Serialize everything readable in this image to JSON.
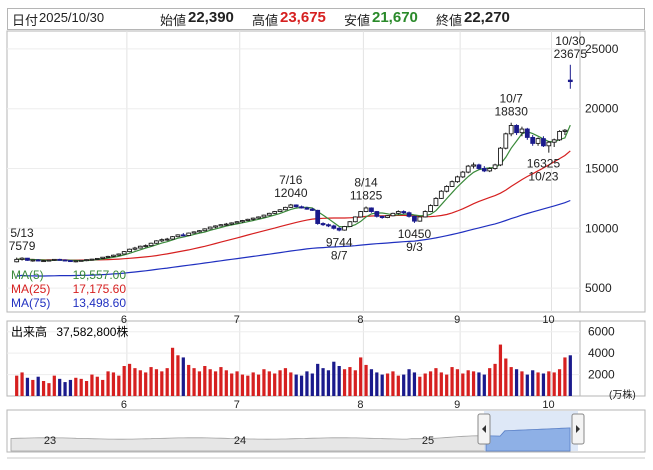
{
  "header": {
    "date_label": "日付",
    "date_value": "2025/10/30",
    "open_label": "始値",
    "open_value": "22,390",
    "high_label": "高値",
    "high_value": "23,675",
    "low_label": "安値",
    "low_value": "21,670",
    "close_label": "終値",
    "close_value": "22,270"
  },
  "colors": {
    "up": "#1a1a1a",
    "down": "#1a1a8c",
    "ma5": "#3a8a3a",
    "ma25": "#d62020",
    "ma75": "#2030c0",
    "high_text": "#d62020",
    "low_text": "#2a8a2a",
    "volume_up": "#d62020",
    "volume_down": "#1a1a8c"
  },
  "legend": {
    "ma5_label": "MA(5)",
    "ma5_value": "19,557.00",
    "ma25_label": "MA(25)",
    "ma25_value": "17,175.60",
    "ma75_label": "MA(75)",
    "ma75_value": "13,498.60"
  },
  "volume_panel": {
    "label": "出来高",
    "value": "37,582,800株",
    "unit": "(万株)"
  },
  "navigator": {
    "labels": [
      "23",
      "24",
      "25"
    ]
  },
  "chart_data": {
    "type": "candlestick",
    "y_ticks": [
      "25000",
      "20000",
      "15000",
      "10000",
      "5000"
    ],
    "ylim": [
      3000,
      26500
    ],
    "x_month_labels": [
      "6",
      "7",
      "8",
      "9",
      "10"
    ],
    "annotations": [
      {
        "date": "5/13",
        "value": 7579
      },
      {
        "date": "7/16",
        "value": 12040
      },
      {
        "date": "8/14",
        "value": 11825
      },
      {
        "date": "8/7",
        "value": 9744
      },
      {
        "date": "9/3",
        "value": 10450
      },
      {
        "date": "10/7",
        "value": 18830
      },
      {
        "date": "10/23",
        "value": 16325
      },
      {
        "date": "10/30",
        "value": 23675
      }
    ],
    "volume_y_ticks": [
      "6000",
      "4000",
      "2000"
    ],
    "volume_ylim": [
      0,
      7000
    ],
    "candles": [
      [
        7200,
        7550,
        7150,
        7400
      ],
      [
        7400,
        7579,
        7300,
        7500
      ],
      [
        7500,
        7520,
        7280,
        7320
      ],
      [
        7320,
        7400,
        7200,
        7350
      ],
      [
        7350,
        7420,
        7250,
        7280
      ],
      [
        7280,
        7350,
        7180,
        7300
      ],
      [
        7300,
        7380,
        7250,
        7340
      ],
      [
        7340,
        7420,
        7280,
        7400
      ],
      [
        7400,
        7450,
        7300,
        7350
      ],
      [
        7350,
        7400,
        7250,
        7300
      ],
      [
        7300,
        7350,
        7200,
        7250
      ],
      [
        7250,
        7300,
        7150,
        7280
      ],
      [
        7280,
        7350,
        7220,
        7320
      ],
      [
        7320,
        7400,
        7250,
        7380
      ],
      [
        7380,
        7450,
        7300,
        7420
      ],
      [
        7420,
        7500,
        7380,
        7480
      ],
      [
        7480,
        7600,
        7450,
        7580
      ],
      [
        7580,
        7700,
        7550,
        7650
      ],
      [
        7650,
        7800,
        7600,
        7750
      ],
      [
        7750,
        7900,
        7700,
        7850
      ],
      [
        7850,
        8100,
        7800,
        8050
      ],
      [
        8050,
        8300,
        8000,
        8250
      ],
      [
        8250,
        8450,
        8150,
        8350
      ],
      [
        8350,
        8550,
        8300,
        8500
      ],
      [
        8500,
        8650,
        8400,
        8550
      ],
      [
        8550,
        8800,
        8500,
        8750
      ],
      [
        8750,
        9000,
        8700,
        8950
      ],
      [
        8950,
        9150,
        8850,
        9050
      ],
      [
        9050,
        9200,
        8950,
        9100
      ],
      [
        9100,
        9350,
        9050,
        9300
      ],
      [
        9300,
        9500,
        9250,
        9450
      ],
      [
        9450,
        9600,
        9350,
        9400
      ],
      [
        9400,
        9650,
        9350,
        9600
      ],
      [
        9600,
        9750,
        9550,
        9700
      ],
      [
        9700,
        9850,
        9650,
        9800
      ],
      [
        9800,
        10000,
        9750,
        9950
      ],
      [
        9950,
        10150,
        9900,
        10100
      ],
      [
        10100,
        10250,
        10000,
        10200
      ],
      [
        10200,
        10350,
        10150,
        10300
      ],
      [
        10300,
        10450,
        10200,
        10350
      ],
      [
        10350,
        10500,
        10250,
        10450
      ],
      [
        10450,
        10600,
        10400,
        10550
      ],
      [
        10550,
        10700,
        10450,
        10650
      ],
      [
        10650,
        10800,
        10600,
        10750
      ],
      [
        10750,
        10900,
        10650,
        10850
      ],
      [
        10850,
        11000,
        10800,
        10950
      ],
      [
        10950,
        11150,
        10900,
        11100
      ],
      [
        11100,
        11300,
        11050,
        11250
      ],
      [
        11250,
        11450,
        11200,
        11400
      ],
      [
        11400,
        11600,
        11350,
        11550
      ],
      [
        11550,
        11800,
        11500,
        11750
      ],
      [
        11750,
        12040,
        11700,
        11950
      ],
      [
        11950,
        12000,
        11750,
        11800
      ],
      [
        11800,
        11900,
        11650,
        11700
      ],
      [
        11700,
        11800,
        11550,
        11600
      ],
      [
        11600,
        11700,
        11450,
        11500
      ],
      [
        11500,
        11550,
        10300,
        10400
      ],
      [
        10400,
        10500,
        10200,
        10300
      ],
      [
        10300,
        10400,
        10100,
        10200
      ],
      [
        10200,
        10300,
        9900,
        10000
      ],
      [
        10000,
        10100,
        9744,
        9850
      ],
      [
        9850,
        10200,
        9800,
        10150
      ],
      [
        10150,
        10600,
        10100,
        10550
      ],
      [
        10550,
        11000,
        10500,
        10950
      ],
      [
        10950,
        11450,
        10900,
        11400
      ],
      [
        11400,
        11825,
        11350,
        11700
      ],
      [
        11700,
        11750,
        11300,
        11400
      ],
      [
        11400,
        11450,
        10900,
        11000
      ],
      [
        11000,
        11050,
        10800,
        10900
      ],
      [
        10900,
        11100,
        10850,
        11050
      ],
      [
        11050,
        11300,
        11000,
        11250
      ],
      [
        11250,
        11500,
        11150,
        11400
      ],
      [
        11400,
        11500,
        11200,
        11300
      ],
      [
        11300,
        11400,
        10900,
        11000
      ],
      [
        11000,
        11050,
        10450,
        10600
      ],
      [
        10600,
        11000,
        10550,
        10950
      ],
      [
        10950,
        11500,
        10900,
        11400
      ],
      [
        11400,
        12000,
        11350,
        11900
      ],
      [
        11900,
        12600,
        11850,
        12500
      ],
      [
        12500,
        13200,
        12450,
        13100
      ],
      [
        13100,
        13600,
        13000,
        13500
      ],
      [
        13500,
        14000,
        13450,
        13900
      ],
      [
        13900,
        14400,
        13800,
        14300
      ],
      [
        14300,
        14800,
        14200,
        14700
      ],
      [
        14700,
        15300,
        14600,
        15200
      ],
      [
        15200,
        15500,
        15000,
        15300
      ],
      [
        15300,
        15400,
        14900,
        15000
      ],
      [
        15000,
        15200,
        14700,
        14800
      ],
      [
        14800,
        15100,
        14700,
        15000
      ],
      [
        15000,
        15400,
        14900,
        15300
      ],
      [
        15300,
        16800,
        15200,
        16700
      ],
      [
        16700,
        18000,
        16600,
        17900
      ],
      [
        17900,
        18830,
        17700,
        18600
      ],
      [
        18600,
        18700,
        17800,
        18000
      ],
      [
        18000,
        18500,
        17700,
        18300
      ],
      [
        18300,
        18400,
        17400,
        17600
      ],
      [
        17600,
        17800,
        16900,
        17100
      ],
      [
        17100,
        17600,
        16900,
        17500
      ],
      [
        17500,
        17700,
        16800,
        16900
      ],
      [
        16900,
        17300,
        16325,
        17200
      ],
      [
        17200,
        17500,
        16800,
        17400
      ],
      [
        17400,
        18200,
        17300,
        18100
      ],
      [
        18100,
        18300,
        17800,
        18200
      ],
      [
        22390,
        23675,
        21670,
        22270
      ]
    ],
    "volumes": [
      1900,
      2200,
      1700,
      1500,
      1800,
      1400,
      1200,
      1900,
      1600,
      1300,
      1500,
      1700,
      1600,
      1400,
      2000,
      1800,
      1500,
      2300,
      2200,
      1900,
      2800,
      3000,
      2600,
      2400,
      2200,
      2700,
      2500,
      2300,
      2600,
      4500,
      3800,
      3600,
      2900,
      2600,
      2300,
      2800,
      2500,
      2300,
      2700,
      2400,
      2100,
      2300,
      2000,
      1900,
      2200,
      2000,
      2500,
      2300,
      2100,
      2400,
      2600,
      2200,
      2000,
      1900,
      2300,
      2100,
      3000,
      2600,
      2400,
      3200,
      2800,
      2500,
      2700,
      2400,
      3600,
      2900,
      2500,
      2200,
      2000,
      2100,
      2300,
      1900,
      2000,
      2500,
      2200,
      1800,
      2100,
      2300,
      2600,
      2200,
      2000,
      2700,
      2500,
      2100,
      2400,
      2300,
      2200,
      2000,
      2600,
      3000,
      4800,
      3500,
      2700,
      2500,
      2300,
      2000,
      2400,
      2200,
      2100,
      2300,
      2200,
      2500,
      3600,
      3800
    ]
  }
}
